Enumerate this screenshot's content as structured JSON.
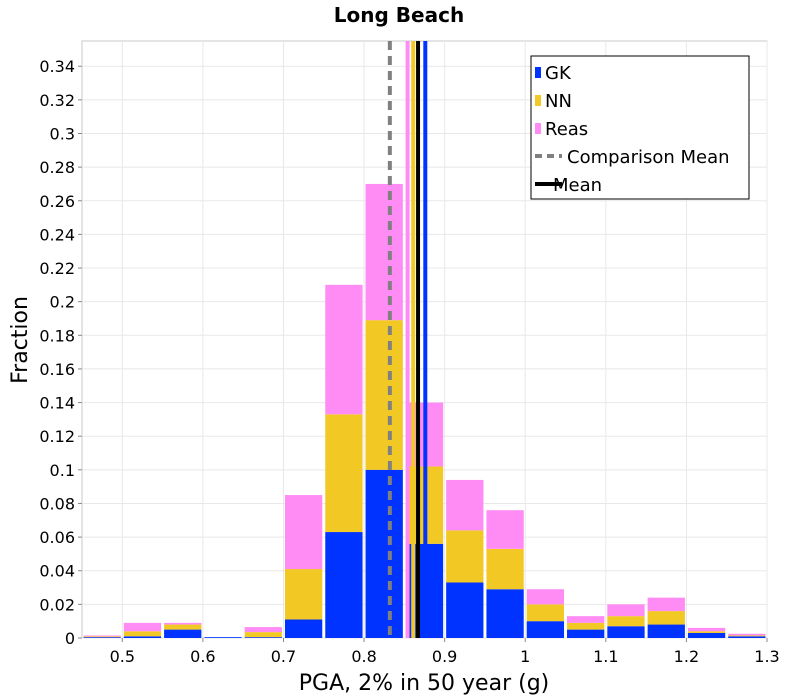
{
  "chart_data": {
    "type": "bar",
    "stacked": true,
    "title": "Long Beach",
    "xlabel": "PGA, 2% in 50 year (g)",
    "ylabel": "Fraction",
    "xlim": [
      0.45,
      1.3
    ],
    "ylim": [
      0,
      0.355
    ],
    "xticks": [
      "0.5",
      "0.6",
      "0.7",
      "0.8",
      "0.9",
      "1",
      "1.1",
      "1.2",
      "1.3"
    ],
    "yticks": [
      "0",
      "0.02",
      "0.04",
      "0.06",
      "0.08",
      "0.1",
      "0.12",
      "0.14",
      "0.16",
      "0.18",
      "0.2",
      "0.22",
      "0.24",
      "0.26",
      "0.28",
      "0.3",
      "0.32",
      "0.34"
    ],
    "grid": true,
    "legend_position": "top-right",
    "x": [
      0.475,
      0.525,
      0.575,
      0.625,
      0.675,
      0.725,
      0.775,
      0.825,
      0.875,
      0.925,
      0.975,
      1.025,
      1.075,
      1.125,
      1.175,
      1.225,
      1.275
    ],
    "series": [
      {
        "name": "GK",
        "color": "#0033ff",
        "values": [
          0.0005,
          0.001,
          0.005,
          0.0005,
          0.0005,
          0.011,
          0.063,
          0.1,
          0.056,
          0.033,
          0.029,
          0.01,
          0.005,
          0.007,
          0.008,
          0.003,
          0.001
        ]
      },
      {
        "name": "NN",
        "color": "#f2c824",
        "values": [
          0.0005,
          0.003,
          0.003,
          0,
          0.003,
          0.03,
          0.07,
          0.089,
          0.046,
          0.031,
          0.024,
          0.01,
          0.004,
          0.006,
          0.008,
          0.001,
          0.0005
        ]
      },
      {
        "name": "Reas",
        "color": "#ff8cf5",
        "values": [
          0.0005,
          0.005,
          0.001,
          0,
          0.003,
          0.044,
          0.077,
          0.081,
          0.038,
          0.03,
          0.023,
          0.009,
          0.004,
          0.007,
          0.008,
          0.002,
          0.001
        ]
      }
    ],
    "lines": [
      {
        "name": "Comparison Mean",
        "x": 0.832,
        "color": "#808080",
        "style": "dashed"
      },
      {
        "name": "Mean",
        "x": 0.867,
        "color": "#000000",
        "style": "solid"
      },
      {
        "series": "Reas",
        "x": 0.854,
        "color": "#ff8cf5",
        "style": "solid"
      },
      {
        "series": "NN",
        "x": 0.861,
        "color": "#f2c824",
        "style": "solid"
      },
      {
        "series": "GK",
        "x": 0.876,
        "color": "#0033ff",
        "style": "solid"
      }
    ],
    "legend": [
      {
        "label": "GK",
        "color": "#0033ff",
        "kind": "swatch"
      },
      {
        "label": "NN",
        "color": "#f2c824",
        "kind": "swatch"
      },
      {
        "label": "Reas",
        "color": "#ff8cf5",
        "kind": "swatch"
      },
      {
        "label": "Comparison Mean",
        "color": "#808080",
        "kind": "dashed"
      },
      {
        "label": "Mean",
        "color": "#000000",
        "kind": "solid"
      }
    ]
  }
}
